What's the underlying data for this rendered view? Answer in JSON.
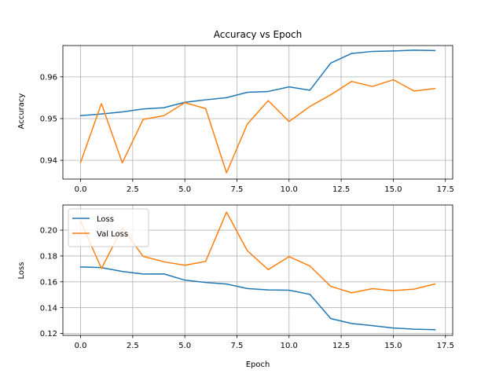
{
  "chart_data": [
    {
      "type": "line",
      "title": "Accuracy vs Epoch",
      "xlabel": "",
      "ylabel": "Accuracy",
      "x": [
        0,
        1,
        2,
        3,
        4,
        5,
        6,
        7,
        8,
        9,
        10,
        11,
        12,
        13,
        14,
        15,
        16,
        17
      ],
      "xlim": [
        -0.85,
        17.85
      ],
      "ylim": [
        0.9355,
        0.9675
      ],
      "xticks": [
        0.0,
        2.5,
        5.0,
        7.5,
        10.0,
        12.5,
        15.0,
        17.5
      ],
      "xtick_labels": [
        "0.0",
        "2.5",
        "5.0",
        "7.5",
        "10.0",
        "12.5",
        "15.0",
        "17.5"
      ],
      "yticks": [
        0.94,
        0.95,
        0.96
      ],
      "ytick_labels": [
        "0.94",
        "0.95",
        "0.96"
      ],
      "grid": true,
      "legend": null,
      "series": [
        {
          "color": "#1f77b4",
          "values": [
            0.9507,
            0.9511,
            0.9516,
            0.9523,
            0.9526,
            0.9539,
            0.9545,
            0.955,
            0.9563,
            0.9565,
            0.9576,
            0.9568,
            0.9633,
            0.9656,
            0.9661,
            0.9662,
            0.9664,
            0.9663
          ]
        },
        {
          "color": "#ff7f0e",
          "values": [
            0.9395,
            0.9536,
            0.9394,
            0.9498,
            0.9507,
            0.9538,
            0.9524,
            0.937,
            0.9487,
            0.9543,
            0.9493,
            0.9529,
            0.9557,
            0.9589,
            0.9577,
            0.9593,
            0.9566,
            0.9572
          ]
        }
      ]
    },
    {
      "type": "line",
      "title": "",
      "xlabel": "Epoch",
      "ylabel": "Loss",
      "x": [
        0,
        1,
        2,
        3,
        4,
        5,
        6,
        7,
        8,
        9,
        10,
        11,
        12,
        13,
        14,
        15,
        16,
        17
      ],
      "xlim": [
        -0.85,
        17.85
      ],
      "ylim": [
        0.1185,
        0.2195
      ],
      "xticks": [
        0.0,
        2.5,
        5.0,
        7.5,
        10.0,
        12.5,
        15.0,
        17.5
      ],
      "xtick_labels": [
        "0.0",
        "2.5",
        "5.0",
        "7.5",
        "10.0",
        "12.5",
        "15.0",
        "17.5"
      ],
      "yticks": [
        0.12,
        0.14,
        0.16,
        0.18,
        0.2
      ],
      "ytick_labels": [
        "0.12",
        "0.14",
        "0.16",
        "0.18",
        "0.20"
      ],
      "grid": true,
      "legend": "top-left",
      "series": [
        {
          "name": "Loss",
          "color": "#1f77b4",
          "values": [
            0.1715,
            0.171,
            0.168,
            0.166,
            0.1661,
            0.1613,
            0.1595,
            0.1583,
            0.1548,
            0.1537,
            0.1535,
            0.1503,
            0.1315,
            0.1277,
            0.126,
            0.1242,
            0.1233,
            0.1229
          ]
        },
        {
          "name": "Val Loss",
          "color": "#ff7f0e",
          "values": [
            0.207,
            0.1703,
            0.2018,
            0.1797,
            0.1755,
            0.1728,
            0.1758,
            0.214,
            0.184,
            0.1695,
            0.1795,
            0.1722,
            0.1565,
            0.1515,
            0.1547,
            0.1532,
            0.1543,
            0.1583
          ]
        }
      ]
    }
  ]
}
